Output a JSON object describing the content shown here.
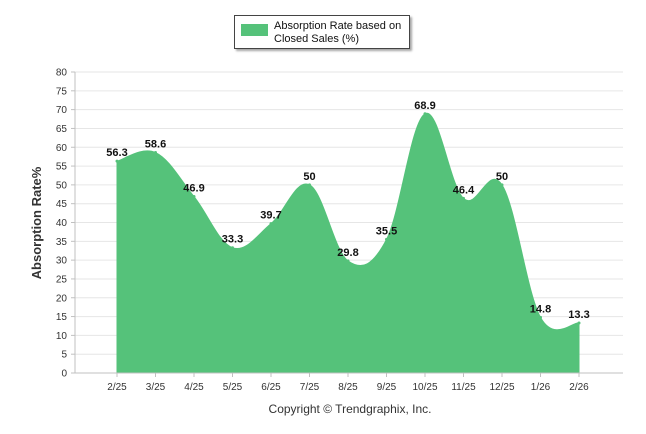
{
  "chart_data": {
    "type": "area",
    "title": "",
    "ylabel": "Absorption Rate%",
    "xlabel": "",
    "categories": [
      "2/25",
      "3/25",
      "4/25",
      "5/25",
      "6/25",
      "7/25",
      "8/25",
      "9/25",
      "10/25",
      "11/25",
      "12/25",
      "1/26",
      "2/26"
    ],
    "series": [
      {
        "name": "Absorption Rate based on Closed Sales (%)",
        "values": [
          56.3,
          58.6,
          46.9,
          33.3,
          39.7,
          50,
          29.8,
          35.5,
          68.9,
          46.4,
          50,
          14.8,
          13.3
        ],
        "labels": [
          "56.3",
          "58.6",
          "46.9",
          "33.3",
          "39.7",
          "50",
          "29.8",
          "35.5",
          "68.9",
          "46.4",
          "50",
          "14.8",
          "13.3"
        ],
        "color": "#55c27a"
      }
    ],
    "ylim": [
      0,
      80
    ],
    "yticks": [
      0,
      5,
      10,
      15,
      20,
      25,
      30,
      35,
      40,
      45,
      50,
      55,
      60,
      65,
      70,
      75,
      80
    ],
    "ytick_labels": [
      "0",
      "5",
      "10",
      "15",
      "20",
      "25",
      "30",
      "35",
      "40",
      "45",
      "50",
      "55",
      "60",
      "65",
      "70",
      "75",
      "80"
    ],
    "grid": true,
    "legend": "top-center"
  },
  "legend": {
    "line1": "Absorption Rate based on",
    "line2": "Closed Sales (%)"
  },
  "credit": "Copyright © Trendgraphix, Inc.",
  "colors": {
    "series": "#55c27a",
    "grid": "#e6e6e6",
    "axis": "#c0c0c0"
  }
}
